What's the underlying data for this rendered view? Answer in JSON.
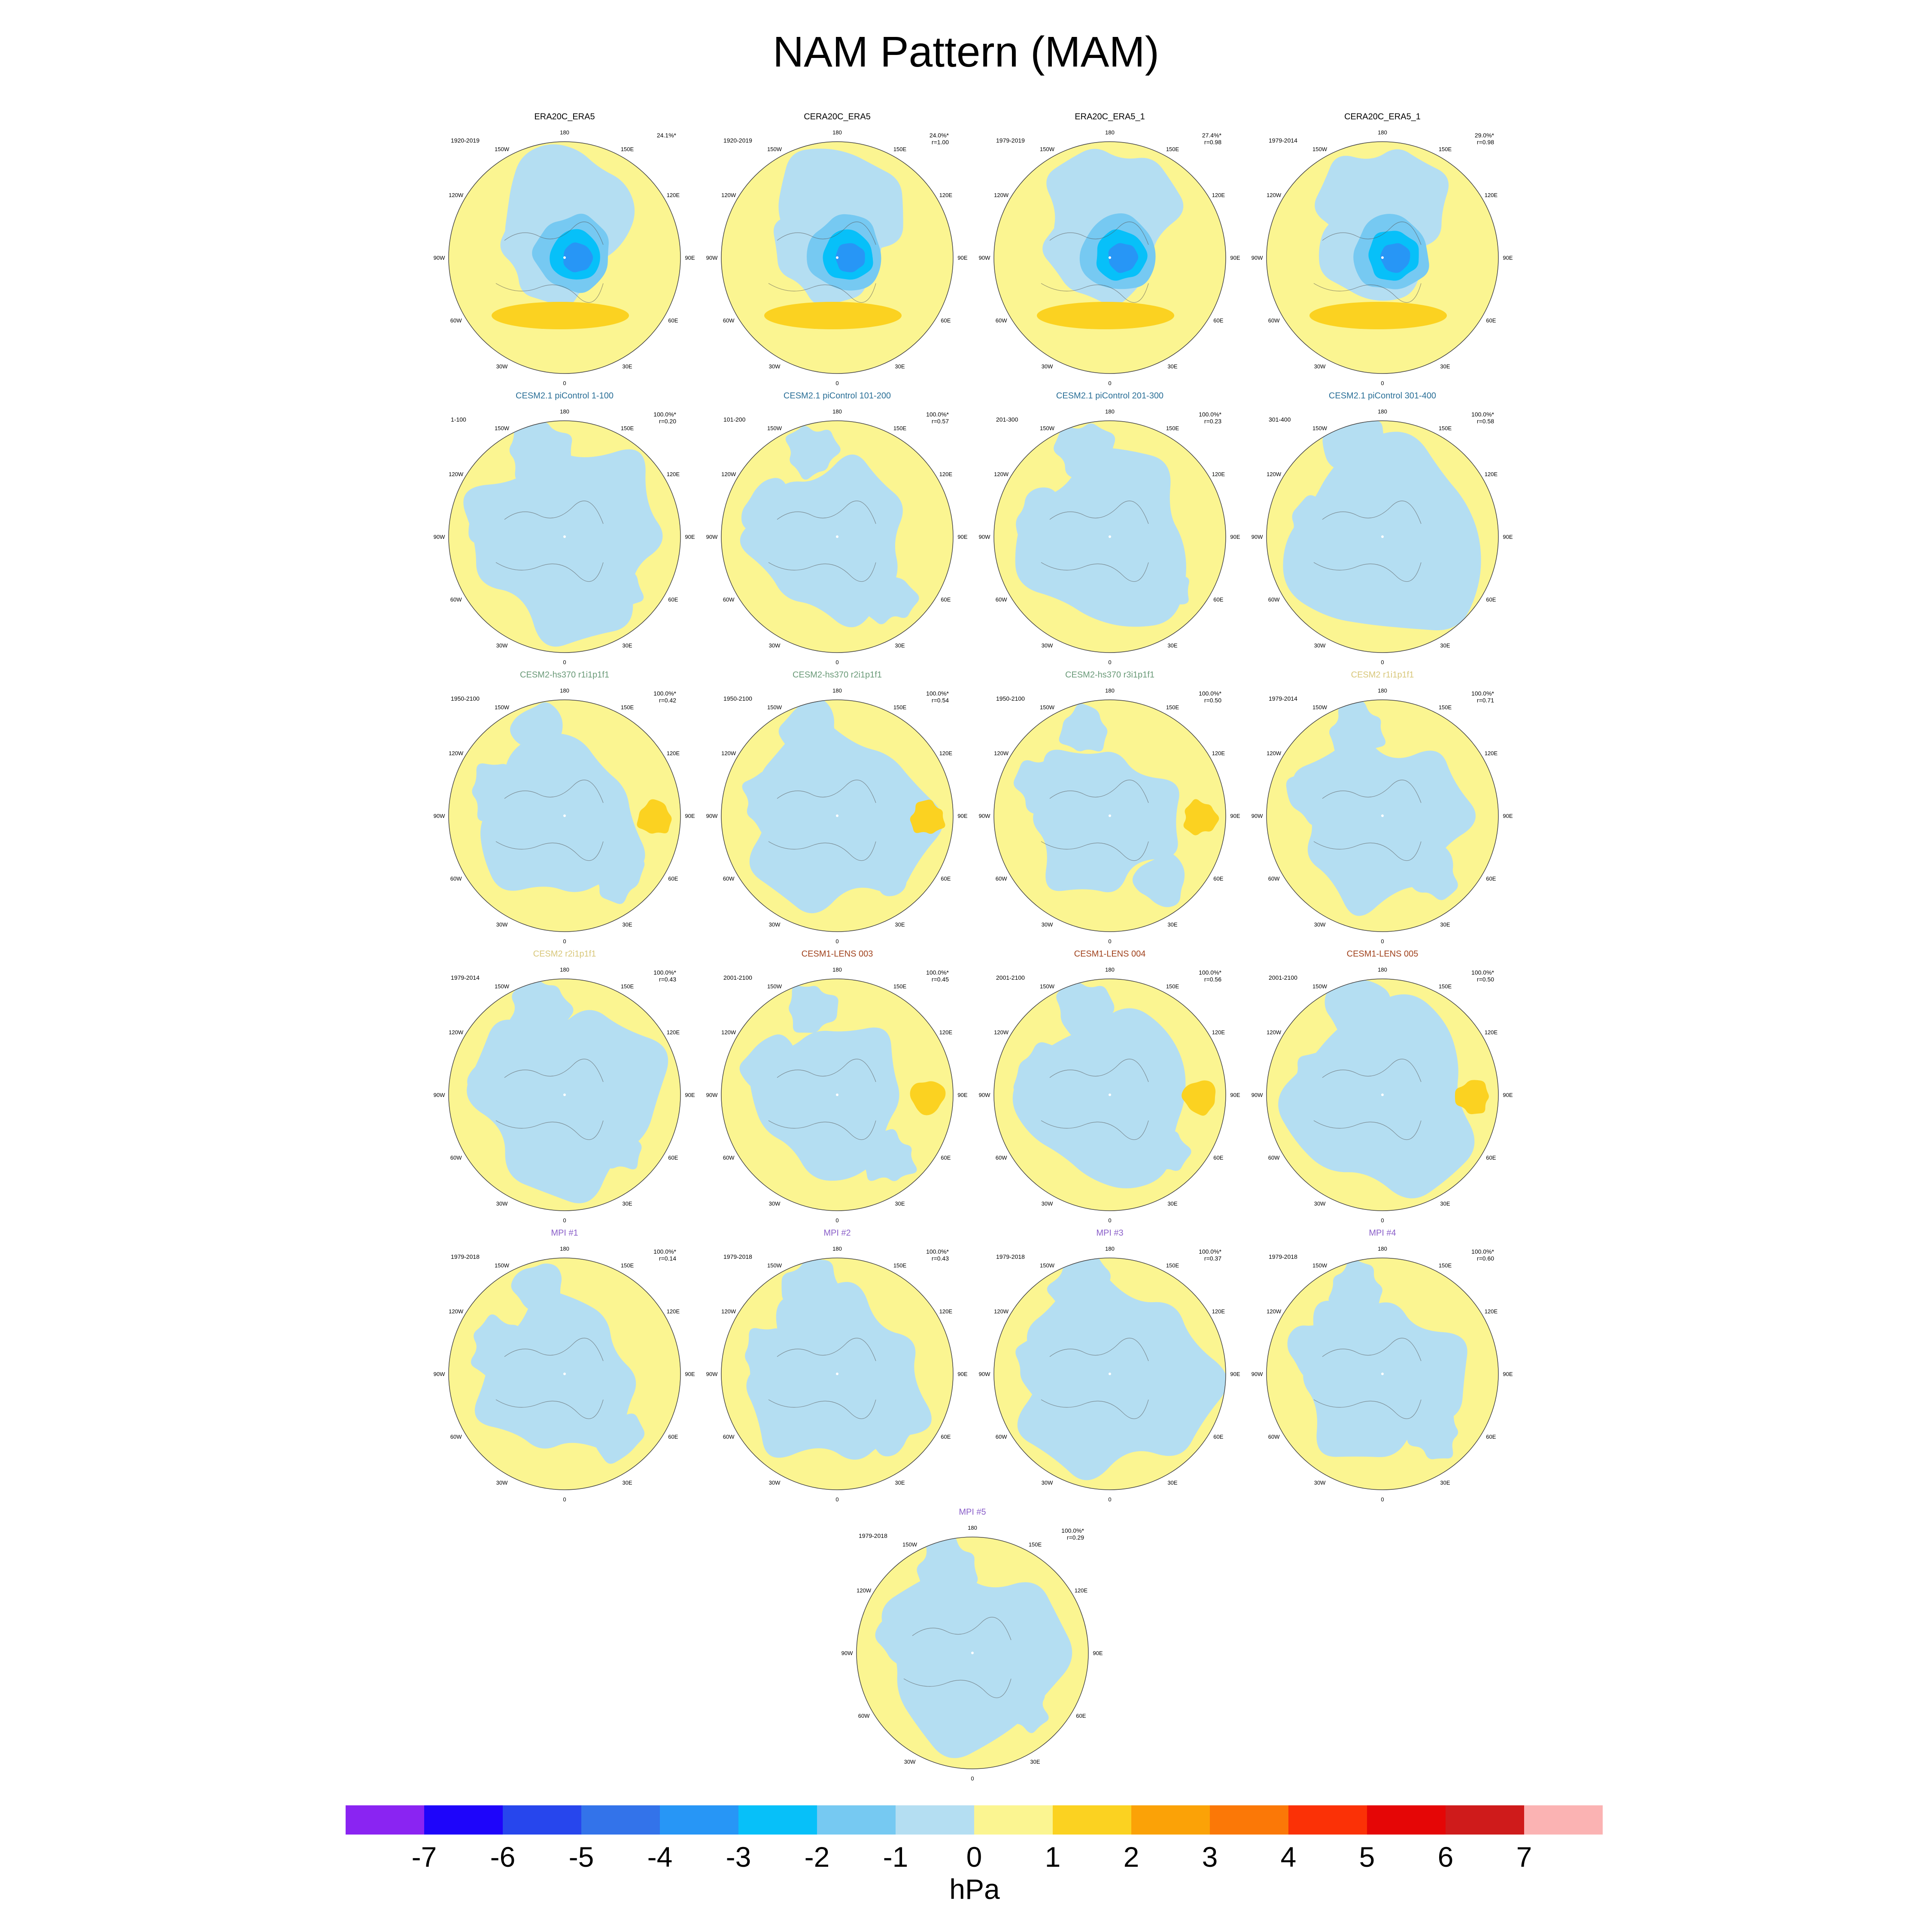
{
  "title": "NAM Pattern (MAM)",
  "colorbar": {
    "label": "hPa",
    "ticks": [
      "-7",
      "-6",
      "-5",
      "-4",
      "-3",
      "-2",
      "-1",
      "0",
      "1",
      "2",
      "3",
      "4",
      "5",
      "6",
      "7"
    ],
    "colors": [
      "#8a24f2",
      "#1e05fa",
      "#2746ed",
      "#3373ea",
      "#2796f6",
      "#07c0f9",
      "#76c9f2",
      "#b4def2",
      "#fbf591",
      "#fbd221",
      "#fba207",
      "#fb7807",
      "#fb3106",
      "#e50606",
      "#cf1b1b",
      "#fbb3b3"
    ]
  },
  "lon_labels": [
    "180",
    "150E",
    "120E",
    "90E",
    "60E",
    "30E",
    "0",
    "30W",
    "60W",
    "90W",
    "120W",
    "150W"
  ],
  "chart_data": [
    {
      "type": "heatmap",
      "title": "ERA20C_ERA5",
      "title_color": "#000000",
      "period": "1920-2019",
      "explained_variance": "24.1%*",
      "pattern_correlation": "",
      "pattern": "observed"
    },
    {
      "type": "heatmap",
      "title": "CERA20C_ERA5",
      "title_color": "#000000",
      "period": "1920-2019",
      "explained_variance": "24.0%*",
      "pattern_correlation": "r=1.00",
      "pattern": "observed"
    },
    {
      "type": "heatmap",
      "title": "ERA20C_ERA5_1",
      "title_color": "#000000",
      "period": "1979-2019",
      "explained_variance": "27.4%*",
      "pattern_correlation": "r=0.98",
      "pattern": "observed"
    },
    {
      "type": "heatmap",
      "title": "CERA20C_ERA5_1",
      "title_color": "#000000",
      "period": "1979-2014",
      "explained_variance": "29.0%*",
      "pattern_correlation": "r=0.98",
      "pattern": "observed"
    },
    {
      "type": "heatmap",
      "title": "CESM2.1 piControl 1-100",
      "title_color": "#2a6f97",
      "period": "1-100",
      "explained_variance": "100.0%*",
      "pattern_correlation": "r=0.20",
      "pattern": "weak"
    },
    {
      "type": "heatmap",
      "title": "CESM2.1 piControl 101-200",
      "title_color": "#2a6f97",
      "period": "101-200",
      "explained_variance": "100.0%*",
      "pattern_correlation": "r=0.57",
      "pattern": "weak"
    },
    {
      "type": "heatmap",
      "title": "CESM2.1 piControl 201-300",
      "title_color": "#2a6f97",
      "period": "201-300",
      "explained_variance": "100.0%*",
      "pattern_correlation": "r=0.23",
      "pattern": "weak"
    },
    {
      "type": "heatmap",
      "title": "CESM2.1 piControl 301-400",
      "title_color": "#2a6f97",
      "period": "301-400",
      "explained_variance": "100.0%*",
      "pattern_correlation": "r=0.58",
      "pattern": "weak"
    },
    {
      "type": "heatmap",
      "title": "CESM2-hs370 r1i1p1f1",
      "title_color": "#6a9a78",
      "period": "1950-2100",
      "explained_variance": "100.0%*",
      "pattern_correlation": "r=0.42",
      "pattern": "east_positive"
    },
    {
      "type": "heatmap",
      "title": "CESM2-hs370 r2i1p1f1",
      "title_color": "#6a9a78",
      "period": "1950-2100",
      "explained_variance": "100.0%*",
      "pattern_correlation": "r=0.54",
      "pattern": "east_positive"
    },
    {
      "type": "heatmap",
      "title": "CESM2-hs370 r3i1p1f1",
      "title_color": "#6a9a78",
      "period": "1950-2100",
      "explained_variance": "100.0%*",
      "pattern_correlation": "r=0.50",
      "pattern": "east_positive"
    },
    {
      "type": "heatmap",
      "title": "CESM2 r1i1p1f1",
      "title_color": "#d8c77a",
      "period": "1979-2014",
      "explained_variance": "100.0%*",
      "pattern_correlation": "r=0.71",
      "pattern": "weak"
    },
    {
      "type": "heatmap",
      "title": "CESM2 r2i1p1f1",
      "title_color": "#d8c77a",
      "period": "1979-2014",
      "explained_variance": "100.0%*",
      "pattern_correlation": "r=0.43",
      "pattern": "weak"
    },
    {
      "type": "heatmap",
      "title": "CESM1-LENS 003",
      "title_color": "#a0421d",
      "period": "2001-2100",
      "explained_variance": "100.0%*",
      "pattern_correlation": "r=0.45",
      "pattern": "east_positive"
    },
    {
      "type": "heatmap",
      "title": "CESM1-LENS 004",
      "title_color": "#a0421d",
      "period": "2001-2100",
      "explained_variance": "100.0%*",
      "pattern_correlation": "r=0.56",
      "pattern": "east_positive"
    },
    {
      "type": "heatmap",
      "title": "CESM1-LENS 005",
      "title_color": "#a0421d",
      "period": "2001-2100",
      "explained_variance": "100.0%*",
      "pattern_correlation": "r=0.50",
      "pattern": "east_positive"
    },
    {
      "type": "heatmap",
      "title": "MPI #1",
      "title_color": "#8a5fc9",
      "period": "1979-2018",
      "explained_variance": "100.0%*",
      "pattern_correlation": "r=0.14",
      "pattern": "weak"
    },
    {
      "type": "heatmap",
      "title": "MPI #2",
      "title_color": "#8a5fc9",
      "period": "1979-2018",
      "explained_variance": "100.0%*",
      "pattern_correlation": "r=0.43",
      "pattern": "weak"
    },
    {
      "type": "heatmap",
      "title": "MPI #3",
      "title_color": "#8a5fc9",
      "period": "1979-2018",
      "explained_variance": "100.0%*",
      "pattern_correlation": "r=0.37",
      "pattern": "weak"
    },
    {
      "type": "heatmap",
      "title": "MPI #4",
      "title_color": "#8a5fc9",
      "period": "1979-2018",
      "explained_variance": "100.0%*",
      "pattern_correlation": "r=0.60",
      "pattern": "weak"
    },
    {
      "type": "heatmap",
      "title": "MPI #5",
      "title_color": "#8a5fc9",
      "period": "1979-2018",
      "explained_variance": "100.0%*",
      "pattern_correlation": "r=0.29",
      "pattern": "weak"
    }
  ]
}
